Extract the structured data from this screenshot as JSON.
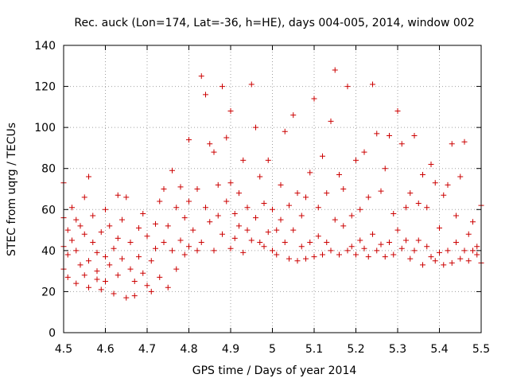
{
  "chart_data": {
    "type": "scatter",
    "title": "Rec. auck (Lon=174, Lat=-36, h=HE), days 004-005, 2014, window 002",
    "xlabel": "GPS time / Days of year 2014",
    "ylabel": "STEC from uqrg / TECUs",
    "xlim": [
      4.5,
      5.5
    ],
    "ylim": [
      0,
      140
    ],
    "xticks": [
      4.5,
      4.6,
      4.7,
      4.8,
      4.9,
      5,
      5.1,
      5.2,
      5.3,
      5.4,
      5.5
    ],
    "xtick_labels": [
      "4.5",
      "4.6",
      "4.7",
      "4.8",
      "4.9",
      "5",
      "5.1",
      "5.2",
      "5.3",
      "5.4",
      "5.5"
    ],
    "yticks": [
      0,
      20,
      40,
      60,
      80,
      100,
      120,
      140
    ],
    "ytick_labels": [
      "0",
      "20",
      "40",
      "60",
      "80",
      "100",
      "120",
      "140"
    ],
    "grid": true,
    "marker": "+",
    "color": "#cc0000",
    "series": [
      {
        "name": "STEC",
        "x": [
          4.5,
          4.5,
          4.5,
          4.5,
          4.51,
          4.51,
          4.51,
          4.52,
          4.52,
          4.53,
          4.53,
          4.53,
          4.54,
          4.54,
          4.55,
          4.55,
          4.55,
          4.56,
          4.56,
          4.56,
          4.57,
          4.57,
          4.58,
          4.58,
          4.58,
          4.59,
          4.59,
          4.6,
          4.6,
          4.6,
          4.61,
          4.61,
          4.62,
          4.62,
          4.63,
          4.63,
          4.63,
          4.64,
          4.64,
          4.65,
          4.65,
          4.66,
          4.66,
          4.67,
          4.67,
          4.68,
          4.68,
          4.69,
          4.69,
          4.7,
          4.7,
          4.71,
          4.71,
          4.72,
          4.72,
          4.73,
          4.73,
          4.74,
          4.74,
          4.75,
          4.75,
          4.76,
          4.76,
          4.77,
          4.77,
          4.78,
          4.78,
          4.79,
          4.79,
          4.8,
          4.8,
          4.8,
          4.81,
          4.82,
          4.82,
          4.83,
          4.83,
          4.84,
          4.84,
          4.85,
          4.85,
          4.86,
          4.86,
          4.87,
          4.87,
          4.88,
          4.88,
          4.89,
          4.89,
          4.9,
          4.9,
          4.9,
          4.91,
          4.91,
          4.92,
          4.92,
          4.93,
          4.93,
          4.94,
          4.94,
          4.95,
          4.95,
          4.96,
          4.96,
          4.97,
          4.97,
          4.98,
          4.98,
          4.99,
          4.99,
          5.0,
          5.0,
          5.01,
          5.01,
          5.02,
          5.02,
          5.03,
          5.03,
          5.04,
          5.04,
          5.05,
          5.05,
          5.06,
          5.06,
          5.07,
          5.07,
          5.08,
          5.08,
          5.09,
          5.09,
          5.1,
          5.1,
          5.11,
          5.11,
          5.12,
          5.12,
          5.13,
          5.13,
          5.14,
          5.14,
          5.15,
          5.15,
          5.16,
          5.16,
          5.17,
          5.17,
          5.18,
          5.18,
          5.19,
          5.19,
          5.2,
          5.2,
          5.21,
          5.21,
          5.22,
          5.22,
          5.23,
          5.23,
          5.24,
          5.24,
          5.25,
          5.25,
          5.26,
          5.26,
          5.27,
          5.27,
          5.28,
          5.28,
          5.29,
          5.29,
          5.3,
          5.3,
          5.31,
          5.31,
          5.32,
          5.32,
          5.33,
          5.33,
          5.34,
          5.34,
          5.35,
          5.35,
          5.36,
          5.36,
          5.37,
          5.37,
          5.38,
          5.38,
          5.39,
          5.39,
          5.4,
          5.4,
          5.41,
          5.41,
          5.42,
          5.42,
          5.43,
          5.43,
          5.44,
          5.44,
          5.45,
          5.45,
          5.46,
          5.46,
          5.47,
          5.47,
          5.48,
          5.48,
          5.49,
          5.49,
          5.5,
          5.5
        ],
        "y": [
          73,
          56,
          42,
          31,
          27,
          50,
          38,
          45,
          61,
          55,
          24,
          40,
          52,
          33,
          66,
          28,
          48,
          76,
          35,
          22,
          44,
          57,
          26,
          39,
          30,
          49,
          21,
          37,
          60,
          25,
          52,
          33,
          41,
          19,
          67,
          46,
          28,
          55,
          36,
          17,
          66,
          44,
          31,
          25,
          18,
          51,
          37,
          58,
          29,
          23,
          47,
          35,
          20,
          53,
          41,
          64,
          27,
          70,
          44,
          22,
          52,
          40,
          79,
          31,
          61,
          45,
          71,
          38,
          56,
          42,
          94,
          64,
          50,
          40,
          70,
          125,
          44,
          116,
          61,
          92,
          54,
          88,
          40,
          72,
          57,
          48,
          120,
          95,
          64,
          41,
          73,
          108,
          58,
          46,
          68,
          52,
          84,
          39,
          61,
          50,
          121,
          45,
          100,
          56,
          76,
          44,
          63,
          42,
          84,
          49,
          60,
          40,
          50,
          38,
          72,
          55,
          98,
          44,
          62,
          36,
          106,
          50,
          68,
          35,
          57,
          42,
          66,
          36,
          78,
          44,
          114,
          37,
          61,
          47,
          86,
          38,
          68,
          44,
          103,
          40,
          55,
          128,
          38,
          77,
          52,
          70,
          120,
          40,
          57,
          42,
          84,
          38,
          60,
          45,
          88,
          41,
          66,
          37,
          121,
          48,
          97,
          40,
          69,
          43,
          80,
          37,
          96,
          44,
          58,
          38,
          108,
          50,
          92,
          41,
          61,
          45,
          68,
          36,
          96,
          40,
          63,
          45,
          77,
          33,
          61,
          42,
          82,
          37,
          73,
          35,
          51,
          39,
          67,
          33,
          72,
          40,
          92,
          34,
          57,
          44,
          76,
          36,
          93,
          40,
          48,
          35,
          54,
          40,
          42,
          38,
          62,
          34
        ]
      }
    ]
  }
}
